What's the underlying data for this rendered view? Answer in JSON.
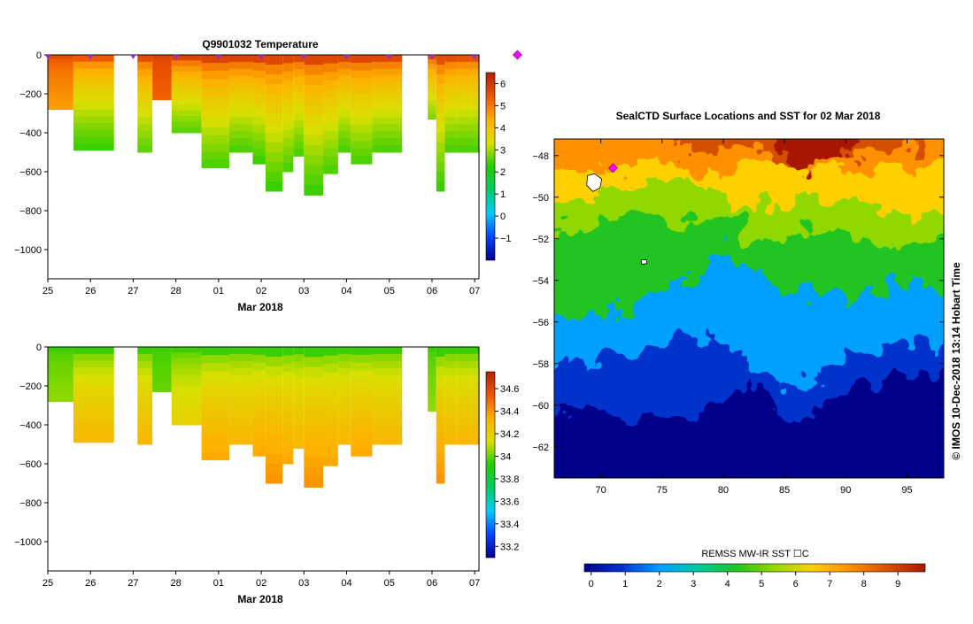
{
  "credit": "© IMOS 10-Dec-2018 13:14 Hobart Time",
  "palettes": {
    "profile": [
      "#00008b",
      "#0044ff",
      "#00ccff",
      "#00cc66",
      "#22cc00",
      "#d9e000",
      "#ffb000",
      "#ee5500",
      "#b22200"
    ],
    "sst": [
      "#00008b",
      "#0033cc",
      "#00a0ff",
      "#00c8a0",
      "#22c422",
      "#90d800",
      "#ffd000",
      "#ff9000",
      "#d45000",
      "#a81800"
    ]
  },
  "chart_data": [
    {
      "type": "heatmap",
      "title": "Q9901032  Temperature",
      "xlabel": "Mar 2018",
      "ylabel": "",
      "x_ticks": [
        "25",
        "26",
        "27",
        "28",
        "01",
        "02",
        "03",
        "04",
        "05",
        "06",
        "07"
      ],
      "ylim": [
        -1150,
        0
      ],
      "y_ticks": [
        0,
        -200,
        -400,
        -600,
        -800,
        -1000
      ],
      "colorbar_range": [
        -2,
        6.5
      ],
      "colorbar_ticks": [
        -1,
        0,
        1,
        2,
        3,
        4,
        5,
        6
      ],
      "profile_markers_x": [
        25.0,
        26.0,
        27.0,
        28.0,
        29.0,
        30.0,
        31.0,
        32.0,
        33.0,
        34.0,
        35.0,
        36.0
      ],
      "highlight_marker_x": 36.0,
      "profiles": [
        {
          "x0": 25.0,
          "x1": 25.6,
          "depth": 280,
          "surface": 5.6,
          "deep": 4.6
        },
        {
          "x0": 25.6,
          "x1": 26.55,
          "depth": 490,
          "surface": 5.4,
          "deep": 2.4
        },
        {
          "x0": 27.1,
          "x1": 27.45,
          "depth": 500,
          "surface": 5.6,
          "deep": 2.6
        },
        {
          "x0": 27.45,
          "x1": 27.9,
          "depth": 230,
          "surface": 5.8,
          "deep": 5.3
        },
        {
          "x0": 27.9,
          "x1": 28.6,
          "depth": 400,
          "surface": 5.8,
          "deep": 2.6
        },
        {
          "x0": 28.6,
          "x1": 29.25,
          "depth": 580,
          "surface": 5.8,
          "deep": 2.5
        },
        {
          "x0": 29.25,
          "x1": 29.8,
          "depth": 500,
          "surface": 5.8,
          "deep": 2.5
        },
        {
          "x0": 29.8,
          "x1": 30.1,
          "depth": 560,
          "surface": 5.8,
          "deep": 2.4
        },
        {
          "x0": 30.1,
          "x1": 30.5,
          "depth": 700,
          "surface": 5.7,
          "deep": 2.4
        },
        {
          "x0": 30.5,
          "x1": 30.75,
          "depth": 600,
          "surface": 5.7,
          "deep": 2.5
        },
        {
          "x0": 30.75,
          "x1": 31.0,
          "depth": 520,
          "surface": 5.7,
          "deep": 2.5
        },
        {
          "x0": 31.0,
          "x1": 31.45,
          "depth": 720,
          "surface": 5.7,
          "deep": 2.4
        },
        {
          "x0": 31.45,
          "x1": 31.8,
          "depth": 610,
          "surface": 5.7,
          "deep": 2.5
        },
        {
          "x0": 31.8,
          "x1": 32.1,
          "depth": 500,
          "surface": 5.7,
          "deep": 2.5
        },
        {
          "x0": 32.1,
          "x1": 32.6,
          "depth": 560,
          "surface": 5.7,
          "deep": 2.5
        },
        {
          "x0": 32.6,
          "x1": 33.3,
          "depth": 500,
          "surface": 5.7,
          "deep": 2.5
        },
        {
          "x0": 33.9,
          "x1": 34.1,
          "depth": 330,
          "surface": 5.6,
          "deep": 2.8
        },
        {
          "x0": 34.1,
          "x1": 34.3,
          "depth": 700,
          "surface": 5.6,
          "deep": 2.4
        },
        {
          "x0": 34.3,
          "x1": 34.6,
          "depth": 500,
          "surface": 5.6,
          "deep": 2.5
        },
        {
          "x0": 34.6,
          "x1": 35.1,
          "depth": 500,
          "surface": 5.5,
          "deep": 2.5
        }
      ]
    },
    {
      "type": "heatmap",
      "title": "",
      "xlabel": "Mar 2018",
      "ylabel": "",
      "x_ticks": [
        "25",
        "26",
        "27",
        "28",
        "01",
        "02",
        "03",
        "04",
        "05",
        "06",
        "07"
      ],
      "ylim": [
        -1150,
        0
      ],
      "y_ticks": [
        0,
        -200,
        -400,
        -600,
        -800,
        -1000
      ],
      "colorbar_range": [
        33.1,
        34.75
      ],
      "colorbar_ticks": [
        33.2,
        33.4,
        33.6,
        33.8,
        34,
        34.2,
        34.4,
        34.6
      ],
      "profiles": [
        {
          "x0": 25.0,
          "x1": 25.6,
          "depth": 280,
          "surface": 33.95,
          "deep": 34.05
        },
        {
          "x0": 25.6,
          "x1": 26.55,
          "depth": 490,
          "surface": 33.95,
          "deep": 34.3
        },
        {
          "x0": 27.1,
          "x1": 27.45,
          "depth": 500,
          "surface": 33.95,
          "deep": 34.3
        },
        {
          "x0": 27.45,
          "x1": 27.9,
          "depth": 230,
          "surface": 33.95,
          "deep": 34.0
        },
        {
          "x0": 27.9,
          "x1": 28.6,
          "depth": 400,
          "surface": 33.95,
          "deep": 34.2
        },
        {
          "x0": 28.6,
          "x1": 29.25,
          "depth": 580,
          "surface": 33.95,
          "deep": 34.35
        },
        {
          "x0": 29.25,
          "x1": 29.8,
          "depth": 500,
          "surface": 33.95,
          "deep": 34.3
        },
        {
          "x0": 29.8,
          "x1": 30.1,
          "depth": 560,
          "surface": 33.95,
          "deep": 34.35
        },
        {
          "x0": 30.1,
          "x1": 30.5,
          "depth": 700,
          "surface": 33.95,
          "deep": 34.4
        },
        {
          "x0": 30.5,
          "x1": 30.75,
          "depth": 600,
          "surface": 33.95,
          "deep": 34.35
        },
        {
          "x0": 30.75,
          "x1": 31.0,
          "depth": 520,
          "surface": 33.95,
          "deep": 34.3
        },
        {
          "x0": 31.0,
          "x1": 31.45,
          "depth": 720,
          "surface": 33.95,
          "deep": 34.4
        },
        {
          "x0": 31.45,
          "x1": 31.8,
          "depth": 610,
          "surface": 33.95,
          "deep": 34.35
        },
        {
          "x0": 31.8,
          "x1": 32.1,
          "depth": 500,
          "surface": 33.95,
          "deep": 34.3
        },
        {
          "x0": 32.1,
          "x1": 32.6,
          "depth": 560,
          "surface": 33.95,
          "deep": 34.35
        },
        {
          "x0": 32.6,
          "x1": 33.3,
          "depth": 500,
          "surface": 33.95,
          "deep": 34.3
        },
        {
          "x0": 33.9,
          "x1": 34.1,
          "depth": 330,
          "surface": 33.95,
          "deep": 34.05
        },
        {
          "x0": 34.1,
          "x1": 34.3,
          "depth": 700,
          "surface": 33.95,
          "deep": 34.4
        },
        {
          "x0": 34.3,
          "x1": 34.6,
          "depth": 500,
          "surface": 33.95,
          "deep": 34.3
        },
        {
          "x0": 34.6,
          "x1": 35.1,
          "depth": 500,
          "surface": 33.95,
          "deep": 34.3
        }
      ]
    },
    {
      "type": "heatmap",
      "title": "SealCTD Surface Locations and SST for 02 Mar 2018",
      "xlabel": "",
      "ylabel": "",
      "xlim": [
        66.2,
        98.0
      ],
      "ylim": [
        -63.5,
        -47.2
      ],
      "x_ticks": [
        70,
        75,
        80,
        85,
        90,
        95
      ],
      "y_ticks": [
        -48,
        -50,
        -52,
        -54,
        -56,
        -58,
        -60,
        -62
      ],
      "colorbar_label": "REMSS MW-IR SST ☐C",
      "colorbar_range": [
        -0.2,
        9.8
      ],
      "colorbar_ticks": [
        0,
        1,
        2,
        3,
        4,
        5,
        6,
        7,
        8,
        9
      ],
      "islands": [
        {
          "lon": 69.5,
          "lat": -49.3
        },
        {
          "lon": 73.5,
          "lat": -53.1
        }
      ],
      "seal_location": {
        "lon": 71.0,
        "lat": -48.6
      }
    }
  ]
}
